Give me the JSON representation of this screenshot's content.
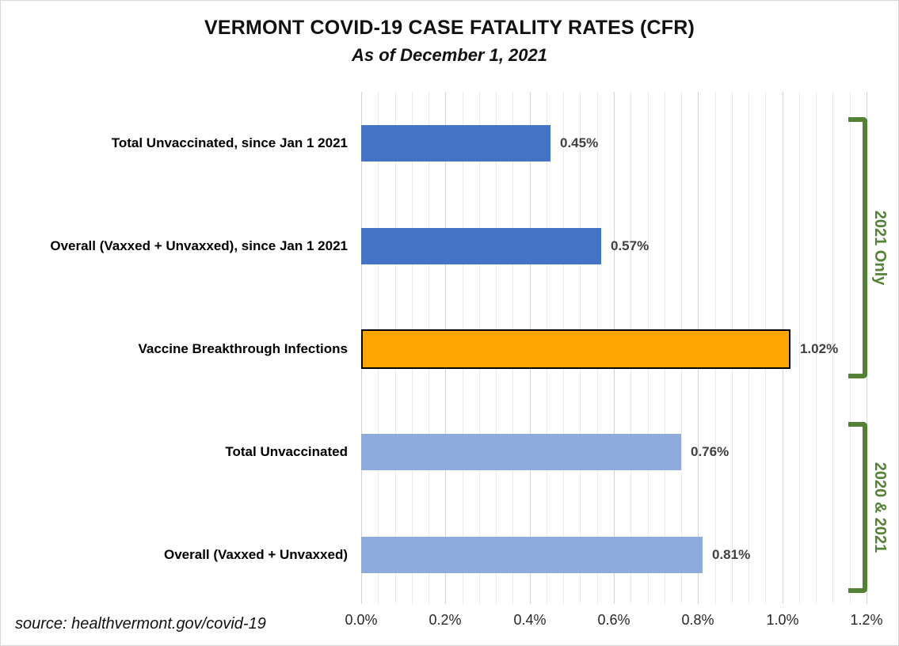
{
  "title": "VERMONT COVID-19 CASE FATALITY RATES (CFR)",
  "subtitle": "As of December 1, 2021",
  "source_note": "source: healthvermont.gov/covid-19",
  "colors": {
    "primary_blue": "#4472C4",
    "light_blue": "#8FAADC",
    "highlight_orange": "#FFA500",
    "highlight_border": "#000000",
    "bracket_green": "#548235",
    "gridline_minor": "#EAEAEA",
    "gridline_major": "#D3D3D3",
    "value_label": "#404040",
    "chart_border": "#D9D9D9"
  },
  "chart_data": {
    "type": "bar",
    "orientation": "horizontal",
    "title": "VERMONT COVID-19 CASE FATALITY RATES (CFR)",
    "subtitle": "As of December 1, 2021",
    "categories": [
      "Total Unvaccinated, since Jan 1 2021",
      "Overall (Vaxxed + Unvaxxed), since Jan 1 2021",
      "Vaccine Breakthrough Infections",
      "Total Unvaccinated",
      "Overall (Vaxxed + Unvaxxed)"
    ],
    "values": [
      0.45,
      0.57,
      1.02,
      0.76,
      0.81
    ],
    "value_labels": [
      "0.45%",
      "0.57%",
      "1.02%",
      "0.76%",
      "0.81%"
    ],
    "bar_colors": [
      "#4472C4",
      "#4472C4",
      "#FFA500",
      "#8FAADC",
      "#8FAADC"
    ],
    "highlight": {
      "index": 2,
      "border_color": "#000000"
    },
    "xlim": [
      0.0,
      1.2
    ],
    "x_tick_labels": [
      "0.0%",
      "0.2%",
      "0.4%",
      "0.6%",
      "0.8%",
      "1.0%",
      "1.2%"
    ],
    "minor_gridline_step": 0.04,
    "major_gridline_step": 0.2,
    "grid": "on",
    "groups": [
      {
        "label": "2021 Only",
        "first_bar": 0,
        "last_bar": 2
      },
      {
        "label": "2020 & 2021",
        "first_bar": 3,
        "last_bar": 4
      }
    ]
  }
}
